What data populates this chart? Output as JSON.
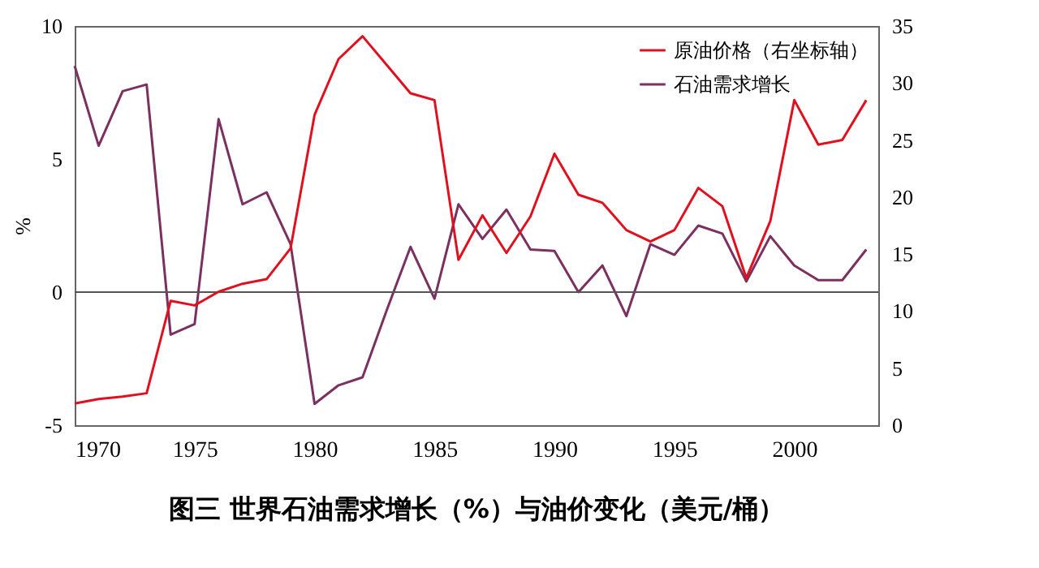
{
  "chart_data": {
    "type": "line",
    "title": "图三 世界石油需求增长（%）与油价变化（美元/桶）",
    "ylabel": "%",
    "x": [
      1970,
      1971,
      1972,
      1973,
      1974,
      1975,
      1976,
      1977,
      1978,
      1979,
      1980,
      1981,
      1982,
      1983,
      1984,
      1985,
      1986,
      1987,
      1988,
      1989,
      1990,
      1991,
      1992,
      1993,
      1994,
      1995,
      1996,
      1997,
      1998,
      1999,
      2000,
      2001,
      2002,
      2003
    ],
    "series": [
      {
        "name": "原油价格（右坐标轴）",
        "color": "#e0101e",
        "axis": "y2",
        "values": [
          1.9,
          2.3,
          2.5,
          2.8,
          10.9,
          10.5,
          11.7,
          12.4,
          12.8,
          15.5,
          27.2,
          32.1,
          34.1,
          31.6,
          29.1,
          28.5,
          14.5,
          18.4,
          15.1,
          18.3,
          23.8,
          20.2,
          19.5,
          17.1,
          16.1,
          17.1,
          20.8,
          19.2,
          12.9,
          17.9,
          28.5,
          24.6,
          25.0,
          28.5
        ]
      },
      {
        "name": "石油需求增长",
        "color": "#7b3060",
        "values": [
          8.5,
          5.5,
          7.55,
          7.8,
          -1.6,
          -1.2,
          6.5,
          3.3,
          3.75,
          1.8,
          -4.2,
          -3.5,
          -3.2,
          -0.7,
          1.7,
          -0.25,
          3.3,
          2.0,
          3.1,
          1.6,
          1.55,
          0.0,
          1.0,
          -0.9,
          1.8,
          1.4,
          2.5,
          2.2,
          0.4,
          2.1,
          1.0,
          0.45,
          0.45,
          1.6
        ]
      }
    ],
    "xlim": [
      1970,
      2003.5
    ],
    "xticks": [
      1970,
      1975,
      1980,
      1985,
      1990,
      1995,
      2000
    ],
    "ylim": [
      -5,
      10
    ],
    "yticks": [
      -5,
      0,
      5,
      10
    ],
    "y2lim": [
      0,
      35
    ],
    "y2ticks": [
      0,
      5,
      10,
      15,
      20,
      25,
      30,
      35
    ],
    "ref_lines": [
      {
        "axis": "y",
        "value": 0
      }
    ],
    "legend": "top right"
  }
}
